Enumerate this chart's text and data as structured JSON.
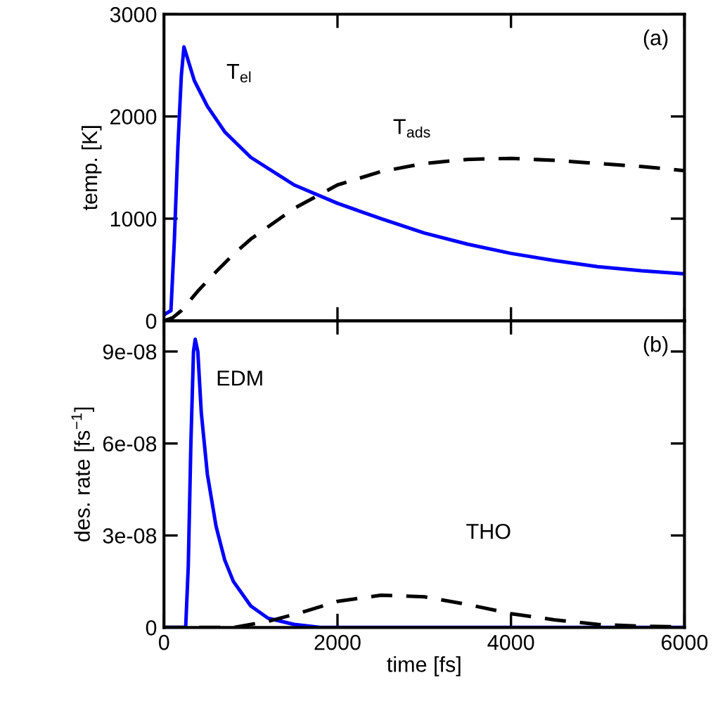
{
  "chart_data": [
    {
      "type": "line",
      "ylabel": "temp. [K]",
      "xlim": [
        0,
        6000
      ],
      "xticks": [
        0,
        2000,
        4000,
        6000
      ],
      "ylim": [
        0,
        3000
      ],
      "yticks": [
        0,
        1000,
        2000,
        3000
      ],
      "tick_labels": "y",
      "grid": false,
      "legend": false,
      "annotations": [
        "T$_{el}$",
        "T$_{ads}$",
        "(a)"
      ],
      "series": [
        {
          "color": "#0000ff",
          "line_style": "solid",
          "x": [
            0,
            80,
            120,
            160,
            200,
            230,
            260,
            350,
            500,
            700,
            1000,
            1500,
            2000,
            2500,
            3000,
            3500,
            4000,
            4500,
            5000,
            5500,
            6000
          ],
          "values": [
            60,
            100,
            800,
            1700,
            2400,
            2680,
            2600,
            2350,
            2100,
            1850,
            1600,
            1330,
            1150,
            1000,
            860,
            750,
            660,
            590,
            530,
            490,
            460
          ]
        },
        {
          "color": "#000000",
          "line_style": "dashed",
          "x": [
            0,
            100,
            200,
            400,
            600,
            800,
            1000,
            1500,
            2000,
            2500,
            3000,
            3500,
            4000,
            4500,
            5000,
            5500,
            6000
          ],
          "values": [
            0,
            30,
            100,
            300,
            480,
            650,
            800,
            1100,
            1330,
            1460,
            1540,
            1580,
            1590,
            1570,
            1540,
            1510,
            1470
          ]
        }
      ]
    },
    {
      "type": "line",
      "xlabel": "time [fs]",
      "ylabel": "des. rate [fs$^{−1}$]",
      "xlim": [
        0,
        6000
      ],
      "xticks": [
        0,
        2000,
        4000,
        6000
      ],
      "ylim": [
        0,
        1e-07
      ],
      "yticks": [
        0,
        {
          "value": 3e-08,
          "label": "3e-08"
        },
        {
          "value": 6e-08,
          "label": "6e-08"
        },
        {
          "value": 9e-08,
          "label": "9e-08"
        }
      ],
      "grid": false,
      "legend": false,
      "annotations": [
        "EDM",
        "THO",
        "(b)"
      ],
      "series": [
        {
          "color": "#0000ff",
          "line_style": "solid",
          "x": [
            0,
            250,
            280,
            310,
            340,
            360,
            390,
            430,
            500,
            600,
            700,
            800,
            1000,
            1200,
            1500,
            1800,
            6000
          ],
          "values": [
            0,
            0,
            2e-08,
            6e-08,
            9e-08,
            9.4e-08,
            9e-08,
            7e-08,
            5e-08,
            3.3e-08,
            2.2e-08,
            1.5e-08,
            7e-09,
            3e-09,
            1e-09,
            0,
            0
          ]
        },
        {
          "color": "#000000",
          "line_style": "dashed",
          "x": [
            0,
            800,
            1200,
            1600,
            2000,
            2500,
            3000,
            3500,
            4000,
            4500,
            5000,
            5500,
            6000
          ],
          "values": [
            0,
            0,
            2e-09,
            5e-09,
            8.5e-09,
            1.05e-08,
            1e-08,
            7.5e-09,
            4.5e-09,
            2.5e-09,
            1e-09,
            4e-10,
            2e-10
          ]
        }
      ]
    }
  ]
}
